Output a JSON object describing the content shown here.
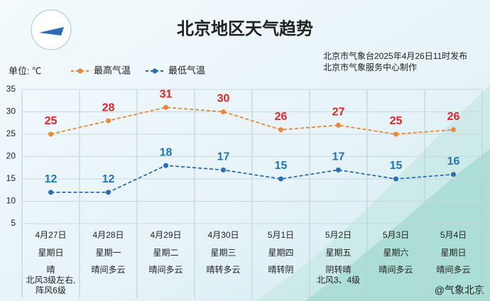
{
  "header": {
    "title": "北京地区天气趋势",
    "source": "北京市气象台2025年4月26日11时发布",
    "maker": "北京市气象服务中心制作",
    "watermark": "@气象北京"
  },
  "chart_data": {
    "type": "line",
    "unit": "单位: ℃",
    "categories": [
      "4月27日",
      "4月28日",
      "4月29日",
      "4月30日",
      "5月1日",
      "5月2日",
      "5月3日",
      "5月4日"
    ],
    "weekdays": [
      "星期日",
      "星期一",
      "星期二",
      "星期三",
      "星期四",
      "星期五",
      "星期六",
      "星期日"
    ],
    "weather": [
      [
        "晴",
        "北风3级左右,",
        "阵风6级"
      ],
      [
        "晴间多云"
      ],
      [
        "晴间多云"
      ],
      [
        "晴转多云"
      ],
      [
        "晴转阴"
      ],
      [
        "阴转晴",
        "北风3、4级"
      ],
      [
        "晴间多云"
      ],
      [
        "晴间多云"
      ]
    ],
    "series": [
      {
        "name": "最高气温",
        "color": "#e8883a",
        "label_color": "#e02424",
        "values": [
          25,
          28,
          31,
          30,
          26,
          27,
          25,
          26
        ]
      },
      {
        "name": "最低气温",
        "color": "#2a6db5",
        "label_color": "#1f73b8",
        "values": [
          12,
          12,
          18,
          17,
          15,
          17,
          15,
          16
        ]
      }
    ],
    "ylim": [
      5,
      35
    ],
    "yticks": [
      5,
      10,
      15,
      20,
      25,
      30,
      35
    ],
    "grid": true
  }
}
